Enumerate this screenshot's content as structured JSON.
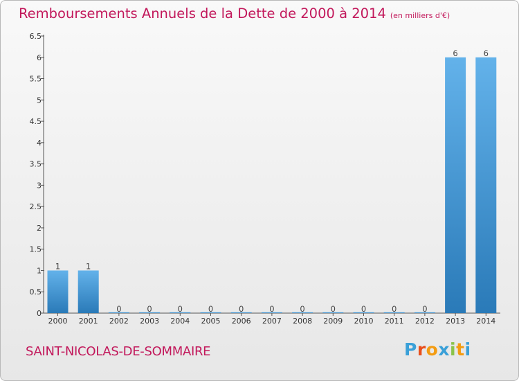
{
  "header": {
    "title": "Remboursements Annuels de la Dette de 2000 à 2014",
    "units": "(en milliers d'€)"
  },
  "footer": {
    "commune": "SAINT-NICOLAS-DE-SOMMAIRE",
    "logo_text": "Proxiti",
    "logo_colors": [
      "#3aa0d8",
      "#e94e1b",
      "#f39c12",
      "#3aa0d8",
      "#8bc34a",
      "#f39c12",
      "#3aa0d8"
    ]
  },
  "colors": {
    "bar_top": "#63b2ea",
    "bar_bottom": "#2a7ab8",
    "title": "#c2185b"
  },
  "chart_data": {
    "type": "bar",
    "title": "Remboursements Annuels de la Dette de 2000 à 2014",
    "categories": [
      "2000",
      "2001",
      "2002",
      "2003",
      "2004",
      "2005",
      "2006",
      "2007",
      "2008",
      "2009",
      "2010",
      "2011",
      "2012",
      "2013",
      "2014"
    ],
    "values": [
      1,
      1,
      0,
      0,
      0,
      0,
      0,
      0,
      0,
      0,
      0,
      0,
      0,
      6,
      6
    ],
    "value_labels": [
      "1",
      "1",
      "0",
      "0",
      "0",
      "0",
      "0",
      "0",
      "0",
      "0",
      "0",
      "0",
      "0",
      "6",
      "6"
    ],
    "ylim": [
      0,
      6.5
    ],
    "yticks": [
      0,
      0.5,
      1,
      1.5,
      2,
      2.5,
      3,
      3.5,
      4,
      4.5,
      5,
      5.5,
      6,
      6.5
    ],
    "ytick_labels": [
      "0",
      "0.5",
      "1",
      "1.5",
      "2",
      "2.5",
      "3",
      "3.5",
      "4",
      "4.5",
      "5",
      "5.5",
      "6",
      "6.5"
    ],
    "grid": false,
    "xlabel": "",
    "ylabel": ""
  }
}
